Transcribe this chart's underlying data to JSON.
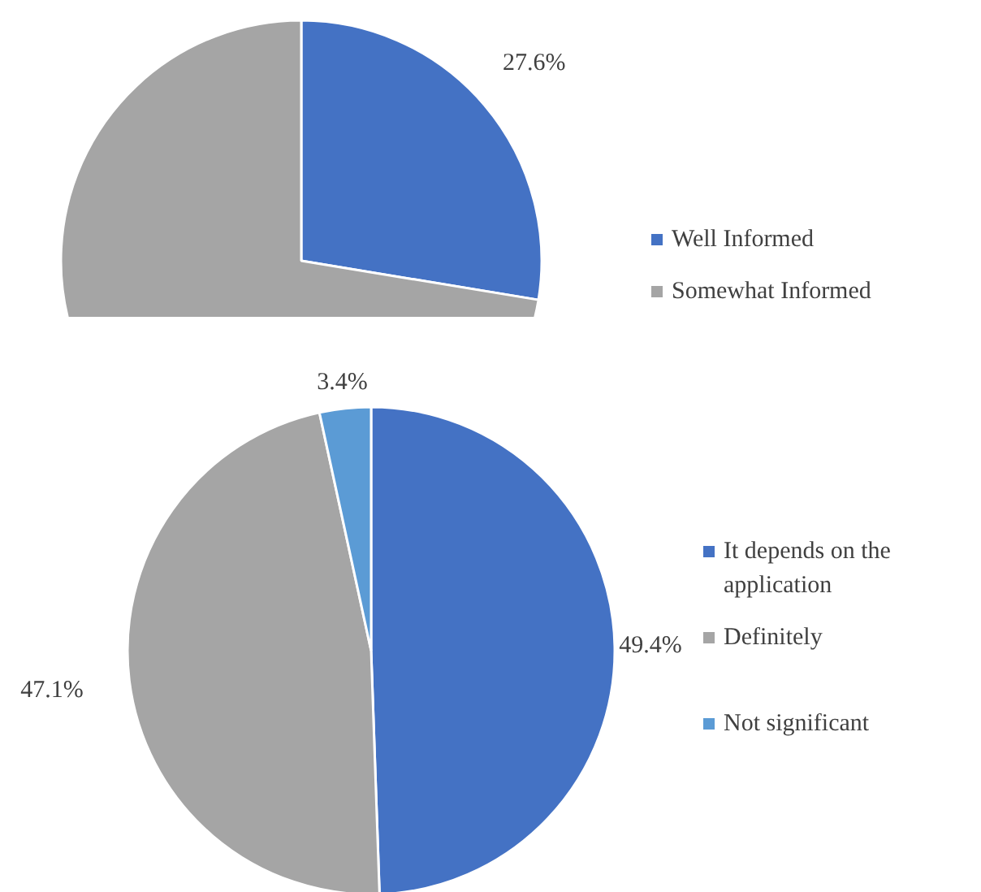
{
  "chart_data": [
    {
      "type": "pie",
      "categories": [
        "Well Informed",
        "Somewhat Informed"
      ],
      "values": [
        27.6,
        72.4
      ],
      "colors": [
        "#4472c4",
        "#a5a5a5"
      ],
      "value_labels": [
        "27.6%",
        null
      ],
      "legend": "right"
    },
    {
      "type": "pie",
      "categories": [
        "It depends on the application",
        "Definitely",
        "Not significant"
      ],
      "values": [
        49.4,
        47.1,
        3.4
      ],
      "colors": [
        "#4472c4",
        "#a5a5a5",
        "#5b9bd5"
      ],
      "value_labels": [
        "49.4%",
        "47.1%",
        "3.4%"
      ],
      "legend": "right"
    }
  ]
}
